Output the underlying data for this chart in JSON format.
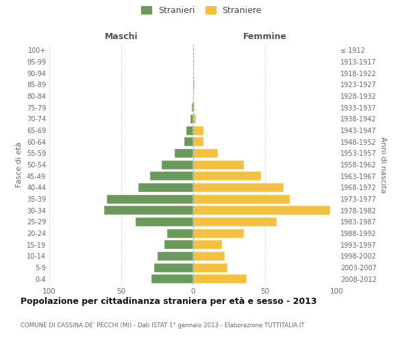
{
  "age_groups": [
    "0-4",
    "5-9",
    "10-14",
    "15-19",
    "20-24",
    "25-29",
    "30-34",
    "35-39",
    "40-44",
    "45-49",
    "50-54",
    "55-59",
    "60-64",
    "65-69",
    "70-74",
    "75-79",
    "80-84",
    "85-89",
    "90-94",
    "95-99",
    "100+"
  ],
  "birth_years": [
    "2008-2012",
    "2003-2007",
    "1998-2002",
    "1993-1997",
    "1988-1992",
    "1983-1987",
    "1978-1982",
    "1973-1977",
    "1968-1972",
    "1963-1967",
    "1958-1962",
    "1953-1957",
    "1948-1952",
    "1943-1947",
    "1938-1942",
    "1933-1937",
    "1928-1932",
    "1923-1927",
    "1918-1922",
    "1913-1917",
    "≤ 1912"
  ],
  "maschi": [
    29,
    27,
    25,
    20,
    18,
    40,
    62,
    60,
    38,
    30,
    22,
    13,
    6,
    5,
    2,
    1,
    0,
    0,
    0,
    0,
    0
  ],
  "femmine": [
    37,
    24,
    22,
    20,
    35,
    58,
    95,
    67,
    63,
    47,
    35,
    17,
    7,
    7,
    2,
    1,
    0,
    1,
    0,
    0,
    0
  ],
  "maschi_color": "#6a9a5b",
  "femmine_color": "#f5c040",
  "title": "Popolazione per cittadinanza straniera per età e sesso - 2013",
  "subtitle": "COMUNE DI CASSINA DE' PECCHI (MI) - Dati ISTAT 1° gennaio 2013 - Elaborazione TUTTITALIA.IT",
  "legend_maschi": "Stranieri",
  "legend_femmine": "Straniere",
  "xlabel_left": "Maschi",
  "xlabel_right": "Femmine",
  "ylabel_left": "Fasce di età",
  "ylabel_right": "Anni di nascita",
  "xlim": 100,
  "background_color": "#ffffff",
  "grid_color": "#cccccc"
}
